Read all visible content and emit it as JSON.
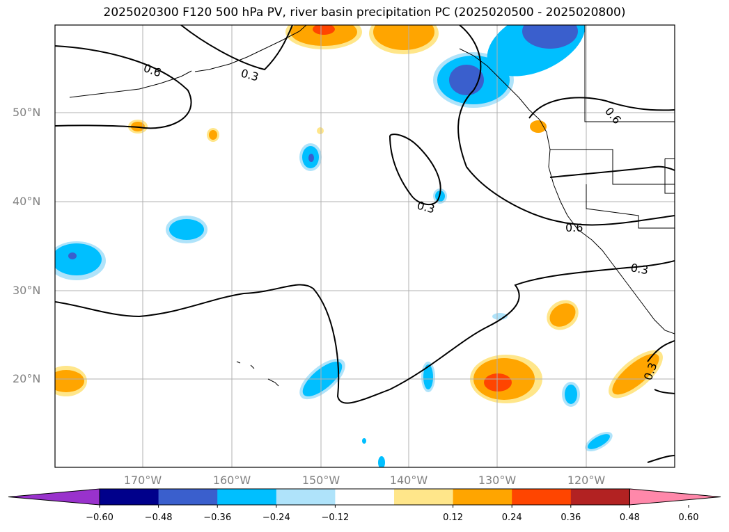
{
  "title": "2025020300 F120 500 hPa PV, river basin precipitation PC (2025020500 - 2025020800)",
  "lat_labels": [
    "50°N",
    "40°N",
    "30°N",
    "20°N"
  ],
  "lon_labels": [
    "170°W",
    "160°W",
    "150°W",
    "140°W",
    "130°W",
    "120°W"
  ],
  "contour_labels": [
    "0.6",
    "0.3",
    "0.3",
    "0.6",
    "0.6",
    "0.3",
    "0.3"
  ],
  "colorbar": {
    "ticks": [
      "−0.60",
      "−0.48",
      "−0.36",
      "−0.24",
      "−0.12",
      "0.12",
      "0.24",
      "0.36",
      "0.48",
      "0.60"
    ],
    "colors": [
      "#9932cc",
      "#00008b",
      "#3a5fcd",
      "#00bfff",
      "#afe3fa",
      "#ffffff",
      "#ffe68a",
      "#ffa500",
      "#ff4500",
      "#b22222",
      "#ff88aa"
    ]
  },
  "colors": {
    "pv_contour": "#000000",
    "coastline": "#000000",
    "grid": "#b0b0b0"
  }
}
